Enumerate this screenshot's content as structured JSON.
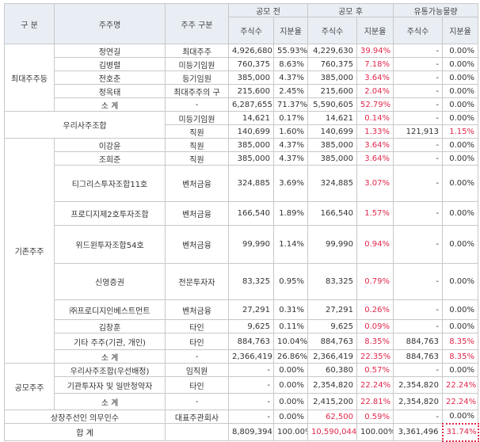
{
  "header": {
    "gubun": "구 분",
    "shareholder": "주주명",
    "shareholder_type": "주주 구분",
    "before": "공모 전",
    "after": "공모 후",
    "tradable": "유통가능물량",
    "shares": "주식수",
    "ratio": "지분율"
  },
  "groups": {
    "largest": "최대주주등",
    "employee": "우리사주조합",
    "existing": "기존주주",
    "public": "공모주주"
  },
  "rows": [
    {
      "name": "정연길",
      "type": "최대주주",
      "before_shares": "4,926,680",
      "before_ratio": "55.93%",
      "after_shares": "4,229,630",
      "after_ratio": "39.94%",
      "tr_shares": "-",
      "tr_ratio": "0.00%"
    },
    {
      "name": "김병렬",
      "type": "미등기임원",
      "before_shares": "760,375",
      "before_ratio": "8.63%",
      "after_shares": "760,375",
      "after_ratio": "7.18%",
      "tr_shares": "-",
      "tr_ratio": "0.00%"
    },
    {
      "name": "전호춘",
      "type": "등기임원",
      "before_shares": "385,000",
      "before_ratio": "4.37%",
      "after_shares": "385,000",
      "after_ratio": "3.64%",
      "tr_shares": "-",
      "tr_ratio": "0.00%"
    },
    {
      "name": "정옥태",
      "type": "최대주주의 구",
      "before_shares": "215,600",
      "before_ratio": "2.45%",
      "after_shares": "215,600",
      "after_ratio": "2.04%",
      "tr_shares": "-",
      "tr_ratio": "0.00%"
    },
    {
      "name": "소 계",
      "type": "-",
      "before_shares": "6,287,655",
      "before_ratio": "71.37%",
      "after_shares": "5,590,605",
      "after_ratio": "52.79%",
      "tr_shares": "-",
      "tr_ratio": "0.00%"
    },
    {
      "name": "",
      "type": "미등기임원",
      "before_shares": "14,621",
      "before_ratio": "0.17%",
      "after_shares": "14,621",
      "after_ratio": "0.14%",
      "tr_shares": "-",
      "tr_ratio": "0.00%"
    },
    {
      "name": "",
      "type": "직원",
      "before_shares": "140,699",
      "before_ratio": "1.60%",
      "after_shares": "140,699",
      "after_ratio": "1.33%",
      "tr_shares": "121,913",
      "tr_ratio": "1.15%"
    },
    {
      "name": "이강윤",
      "type": "직원",
      "before_shares": "385,000",
      "before_ratio": "4.37%",
      "after_shares": "385,000",
      "after_ratio": "3.64%",
      "tr_shares": "-",
      "tr_ratio": "0.00%"
    },
    {
      "name": "조희준",
      "type": "직원",
      "before_shares": "385,000",
      "before_ratio": "4.37%",
      "after_shares": "385,000",
      "after_ratio": "3.64%",
      "tr_shares": "-",
      "tr_ratio": "0.00%"
    },
    {
      "name": "티그리스투자조합11호",
      "type": "벤처금융",
      "before_shares": "324,885",
      "before_ratio": "3.69%",
      "after_shares": "324,885",
      "after_ratio": "3.07%",
      "tr_shares": "-",
      "tr_ratio": "0.00%"
    },
    {
      "name": "프로디지제2호투자조합",
      "type": "벤처금융",
      "before_shares": "166,540",
      "before_ratio": "1.89%",
      "after_shares": "166,540",
      "after_ratio": "1.57%",
      "tr_shares": "-",
      "tr_ratio": "0.00%"
    },
    {
      "name": "위드윈투자조합54호",
      "type": "벤처금융",
      "before_shares": "99,990",
      "before_ratio": "1.14%",
      "after_shares": "99,990",
      "after_ratio": "0.94%",
      "tr_shares": "-",
      "tr_ratio": "0.00%"
    },
    {
      "name": "신영증권",
      "type": "전문투자자",
      "before_shares": "83,325",
      "before_ratio": "0.95%",
      "after_shares": "83,325",
      "after_ratio": "0.79%",
      "tr_shares": "-",
      "tr_ratio": "0.00%"
    },
    {
      "name": "㈜프로디지인베스트먼트",
      "type": "벤처금융",
      "before_shares": "27,291",
      "before_ratio": "0.31%",
      "after_shares": "27,291",
      "after_ratio": "0.26%",
      "tr_shares": "-",
      "tr_ratio": "0.00%"
    },
    {
      "name": "김창훈",
      "type": "타인",
      "before_shares": "9,625",
      "before_ratio": "0.11%",
      "after_shares": "9,625",
      "after_ratio": "0.09%",
      "tr_shares": "-",
      "tr_ratio": "0.00%"
    },
    {
      "name": "기타 주주(기관, 개인)",
      "type": "타인",
      "before_shares": "884,763",
      "before_ratio": "10.04%",
      "after_shares": "884,763",
      "after_ratio": "8.35%",
      "tr_shares": "884,763",
      "tr_ratio": "8.35%"
    },
    {
      "name": "소 계",
      "type": "-",
      "before_shares": "2,366,419",
      "before_ratio": "26.86%",
      "after_shares": "2,366,419",
      "after_ratio": "22.35%",
      "tr_shares": "884,763",
      "tr_ratio": "8.35%"
    },
    {
      "name": "우리사주조합(우선배정)",
      "type": "임직원",
      "before_shares": "-",
      "before_ratio": "0.00%",
      "after_shares": "60,380",
      "after_ratio": "0.57%",
      "tr_shares": "-",
      "tr_ratio": "0.00%"
    },
    {
      "name": "기관투자자 및 일반청약자",
      "type": "타인",
      "before_shares": "-",
      "before_ratio": "0.00%",
      "after_shares": "2,354,820",
      "after_ratio": "22.24%",
      "tr_shares": "2,354,820",
      "tr_ratio": "22.24%"
    },
    {
      "name": "소 계",
      "type": "-",
      "before_shares": "-",
      "before_ratio": "0.00%",
      "after_shares": "2,415,200",
      "after_ratio": "22.81%",
      "tr_shares": "2,354,820",
      "tr_ratio": "22.24%"
    }
  ],
  "underwriter_row": {
    "label": "상장주선인 의무인수",
    "type": "대표주관회사",
    "before_shares": "-",
    "before_ratio": "0.00%",
    "after_shares": "62,500",
    "after_ratio": "0.59%",
    "tr_shares": "-",
    "tr_ratio": "0.00%"
  },
  "total_row": {
    "label": "합 계",
    "type": "",
    "before_shares": "8,809,394",
    "before_ratio": "100.00%",
    "after_shares": "10,590,044",
    "after_ratio": "100.00%",
    "tr_shares": "3,361,496",
    "tr_ratio": "31.74%"
  }
}
